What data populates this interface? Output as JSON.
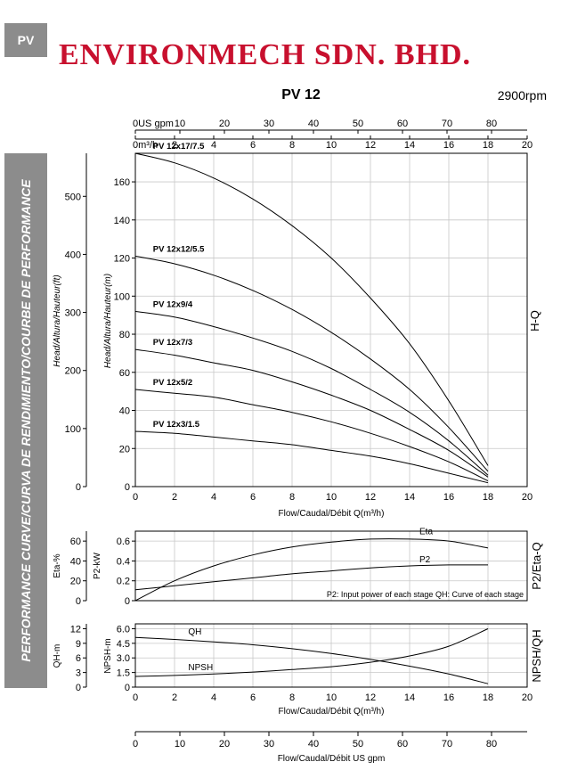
{
  "header": {
    "tag": "PV",
    "company": "ENVIRONMECH SDN. BHD.",
    "sidebar_text": "PERFORMANCE CURVE/CURVA DE RENDIMIENTO/COURBE DE PERFORMANCE"
  },
  "chart_data": [
    {
      "type": "line",
      "title": "PV 12",
      "speed": "2900rpm",
      "right_label": "H-Q",
      "xlabel": "Flow/Caudal/Débit Q(m³/h)",
      "ylabel": "Head/Altura/Hauteur(m)",
      "ylabel_secondary": "Head/Altura/Hauteur(ft)",
      "xlim": [
        0,
        20
      ],
      "ylim": [
        0,
        175
      ],
      "x_ticks": [
        0,
        2,
        4,
        6,
        8,
        10,
        12,
        14,
        16,
        18,
        20
      ],
      "y_ticks": [
        0,
        20,
        40,
        60,
        80,
        100,
        120,
        140,
        160
      ],
      "y_ticks_secondary": [
        0,
        100,
        200,
        300,
        400,
        500
      ],
      "top_axis_unit": "m³/h",
      "top_axis_us_unit": "US gpm",
      "top_axis_us_ticks": [
        0,
        10,
        20,
        30,
        40,
        50,
        60,
        70,
        80
      ],
      "grid": true,
      "series": [
        {
          "name": "PV 12x17/7.5",
          "x": [
            0,
            2,
            4,
            6,
            8,
            10,
            12,
            14,
            16,
            18
          ],
          "y": [
            175,
            170,
            162,
            151,
            137,
            120,
            99,
            75,
            45,
            11
          ]
        },
        {
          "name": "PV 12x12/5.5",
          "x": [
            0,
            2,
            4,
            6,
            8,
            10,
            12,
            14,
            16,
            18
          ],
          "y": [
            121,
            117,
            111,
            103,
            93,
            81,
            67,
            51,
            31,
            8
          ]
        },
        {
          "name": "PV 12x9/4",
          "x": [
            0,
            2,
            4,
            6,
            8,
            10,
            12,
            14,
            16,
            18
          ],
          "y": [
            92,
            89,
            84,
            78,
            71,
            62,
            51,
            39,
            24,
            6
          ]
        },
        {
          "name": "PV 12x7/3",
          "x": [
            0,
            2,
            4,
            6,
            8,
            10,
            12,
            14,
            16,
            18
          ],
          "y": [
            72,
            69,
            65,
            61,
            55,
            48,
            40,
            30,
            19,
            5
          ]
        },
        {
          "name": "PV 12x5/2",
          "x": [
            0,
            2,
            4,
            6,
            8,
            10,
            12,
            14,
            16,
            18
          ],
          "y": [
            51,
            49,
            47,
            43,
            39,
            34,
            28,
            21,
            13,
            3
          ]
        },
        {
          "name": "PV 12x3/1.5",
          "x": [
            0,
            2,
            4,
            6,
            8,
            10,
            12,
            14,
            16,
            18
          ],
          "y": [
            29,
            28,
            26,
            24,
            22,
            19,
            16,
            12,
            7,
            2
          ]
        }
      ]
    },
    {
      "type": "line",
      "right_label": "P2/Eta-Q",
      "ylabel_left": "Eta-%",
      "ylabel_right": "P2-kW",
      "xlim": [
        0,
        20
      ],
      "ylim": [
        0,
        0.7
      ],
      "y_ticks": [
        0,
        0.2,
        0.4,
        0.6
      ],
      "y_ticks_secondary": [
        0,
        20,
        40,
        60
      ],
      "note": "P2: Input power of each stage QH: Curve of each stage",
      "grid": true,
      "series": [
        {
          "name": "Eta",
          "x": [
            0,
            2,
            4,
            6,
            8,
            10,
            12,
            14,
            16,
            18
          ],
          "y": [
            0,
            0.2,
            0.35,
            0.46,
            0.54,
            0.59,
            0.62,
            0.62,
            0.6,
            0.53
          ]
        },
        {
          "name": "P2",
          "x": [
            0,
            2,
            4,
            6,
            8,
            10,
            12,
            14,
            16,
            18
          ],
          "y": [
            0.11,
            0.15,
            0.19,
            0.23,
            0.27,
            0.3,
            0.33,
            0.35,
            0.36,
            0.36
          ]
        }
      ]
    },
    {
      "type": "line",
      "right_label": "NPSH/QH",
      "ylabel_left": "QH-m",
      "ylabel_right": "NPSH-m",
      "xlabel": "Flow/Caudal/Débit Q(m³/h)",
      "xlim": [
        0,
        20
      ],
      "ylim": [
        0,
        6.5
      ],
      "y_ticks": [
        0,
        1.5,
        3.0,
        4.5,
        6.0
      ],
      "y_tick_labels": [
        "0",
        "1.5",
        "3.0",
        "4.5",
        "6.0"
      ],
      "y_ticks_secondary": [
        0,
        3,
        6,
        9,
        12
      ],
      "grid": true,
      "series": [
        {
          "name": "QH",
          "x": [
            0,
            2,
            4,
            6,
            8,
            10,
            12,
            14,
            16,
            18
          ],
          "y": [
            5.1,
            4.9,
            4.65,
            4.35,
            3.95,
            3.45,
            2.85,
            2.15,
            1.35,
            0.35
          ]
        },
        {
          "name": "NPSH",
          "x": [
            0,
            2,
            4,
            6,
            8,
            10,
            12,
            14,
            16,
            18
          ],
          "y": [
            1.1,
            1.2,
            1.35,
            1.55,
            1.8,
            2.1,
            2.55,
            3.2,
            4.2,
            6.0
          ]
        }
      ]
    }
  ],
  "bottom_axis": {
    "xlabel": "Flow/Caudal/Débit US gpm",
    "ticks": [
      0,
      10,
      20,
      30,
      40,
      50,
      60,
      70,
      80
    ],
    "xlim": [
      0,
      88
    ]
  }
}
